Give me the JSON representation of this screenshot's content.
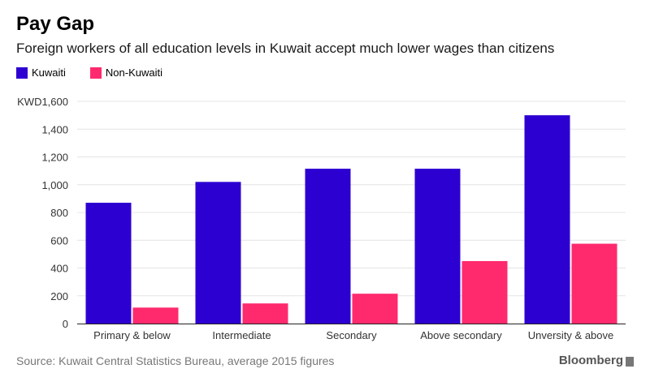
{
  "colors": {
    "kuwaiti": "#2d00d2",
    "non_kuwaiti": "#ff2a6d",
    "grid": "#e4e4e4",
    "axis": "#222222",
    "text": "#333333"
  },
  "header": {
    "title": "Pay Gap",
    "subtitle": "Foreign workers of all education levels in Kuwait accept much lower wages than citizens"
  },
  "footer": {
    "source": "Source: Kuwait Central Statistics Bureau, average 2015 figures",
    "brand": "Bloomberg",
    "brand_icon": "bloomberg-bars-icon"
  },
  "chart_data": {
    "type": "bar",
    "title": "Pay Gap",
    "subtitle": "Foreign workers of all education levels in Kuwait accept much lower wages than citizens",
    "categories": [
      "Primary & below",
      "Intermediate",
      "Secondary",
      "Above secondary",
      "Unversity & above"
    ],
    "series": [
      {
        "name": "Kuwaiti",
        "values": [
          870,
          1020,
          1115,
          1115,
          1500
        ]
      },
      {
        "name": "Non-Kuwaiti",
        "values": [
          115,
          145,
          215,
          450,
          575
        ]
      }
    ],
    "yticks": [
      "0",
      "200",
      "400",
      "600",
      "800",
      "1,000",
      "1,200",
      "1,400",
      "KWD1,600"
    ],
    "ytick_values": [
      0,
      200,
      400,
      600,
      800,
      1000,
      1200,
      1400,
      1600
    ],
    "ylim": [
      0,
      1600
    ],
    "xlabel": "",
    "ylabel": "",
    "grid": true,
    "legend": "top-left"
  }
}
